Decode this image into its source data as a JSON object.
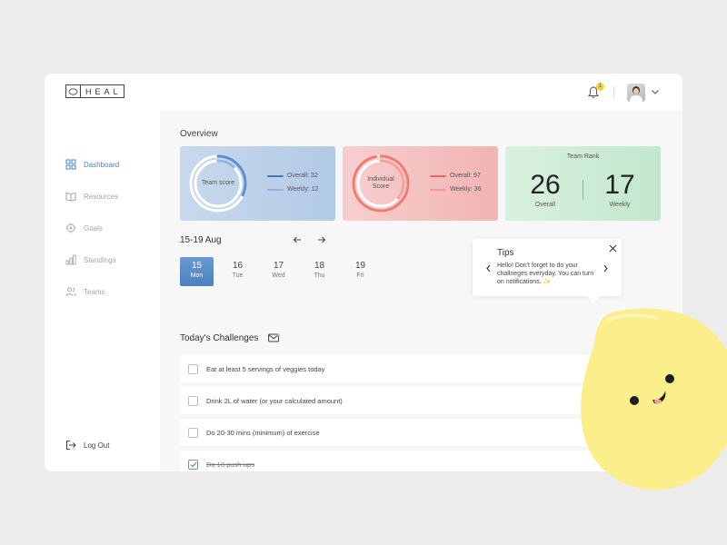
{
  "brand": {
    "name": "HEAL"
  },
  "header": {
    "notification_count": "1",
    "accent_badge": "#f2d33b"
  },
  "sidebar": {
    "items": [
      {
        "label": "Dashboard",
        "icon": "grid-icon",
        "active": true
      },
      {
        "label": "Resources",
        "icon": "book-icon",
        "active": false
      },
      {
        "label": "Goals",
        "icon": "target-icon",
        "active": false
      },
      {
        "label": "Standings",
        "icon": "bar-chart-icon",
        "active": false
      },
      {
        "label": "Teams",
        "icon": "users-icon",
        "active": false
      }
    ],
    "logout_label": "Log Out"
  },
  "overview": {
    "title": "Overview",
    "team": {
      "ring_label": "Team score",
      "overall": "Overall: 32",
      "weekly": "Weekly: 12",
      "overall_value": 32,
      "weekly_value": 12,
      "color": "#5b8fd0"
    },
    "individual": {
      "ring_label_line1": "Individual",
      "ring_label_line2": "Score",
      "overall": "Overall: 97",
      "weekly": "Weekly: 36",
      "overall_value": 97,
      "weekly_value": 36,
      "color": "#ec7b74"
    },
    "rank": {
      "title": "Team Rank",
      "overall_value": "26",
      "overall_label": "Overall",
      "weekly_value": "17",
      "weekly_label": "Weekly"
    }
  },
  "week": {
    "label": "15-19 Aug",
    "days": [
      {
        "num": "15",
        "name": "Mon",
        "active": true
      },
      {
        "num": "16",
        "name": "Tue",
        "active": false
      },
      {
        "num": "17",
        "name": "Wed",
        "active": false
      },
      {
        "num": "18",
        "name": "Thu",
        "active": false
      },
      {
        "num": "19",
        "name": "Fri",
        "active": false
      }
    ]
  },
  "challenges": {
    "title": "Today's Challenges",
    "items": [
      {
        "text": "Eat at least 5 servings of veggies today",
        "done": false
      },
      {
        "text": "Drink 2L of water (or your calculated amount)",
        "done": false
      },
      {
        "text": "Do 20-30 mins (minimum) of exercise",
        "done": false
      },
      {
        "text": "Do 10 push-ups",
        "done": true
      }
    ]
  },
  "tips": {
    "title": "Tips",
    "body": "Hello! Don't forget to do your challneges everyday. You can turn on notifications. ✨"
  }
}
